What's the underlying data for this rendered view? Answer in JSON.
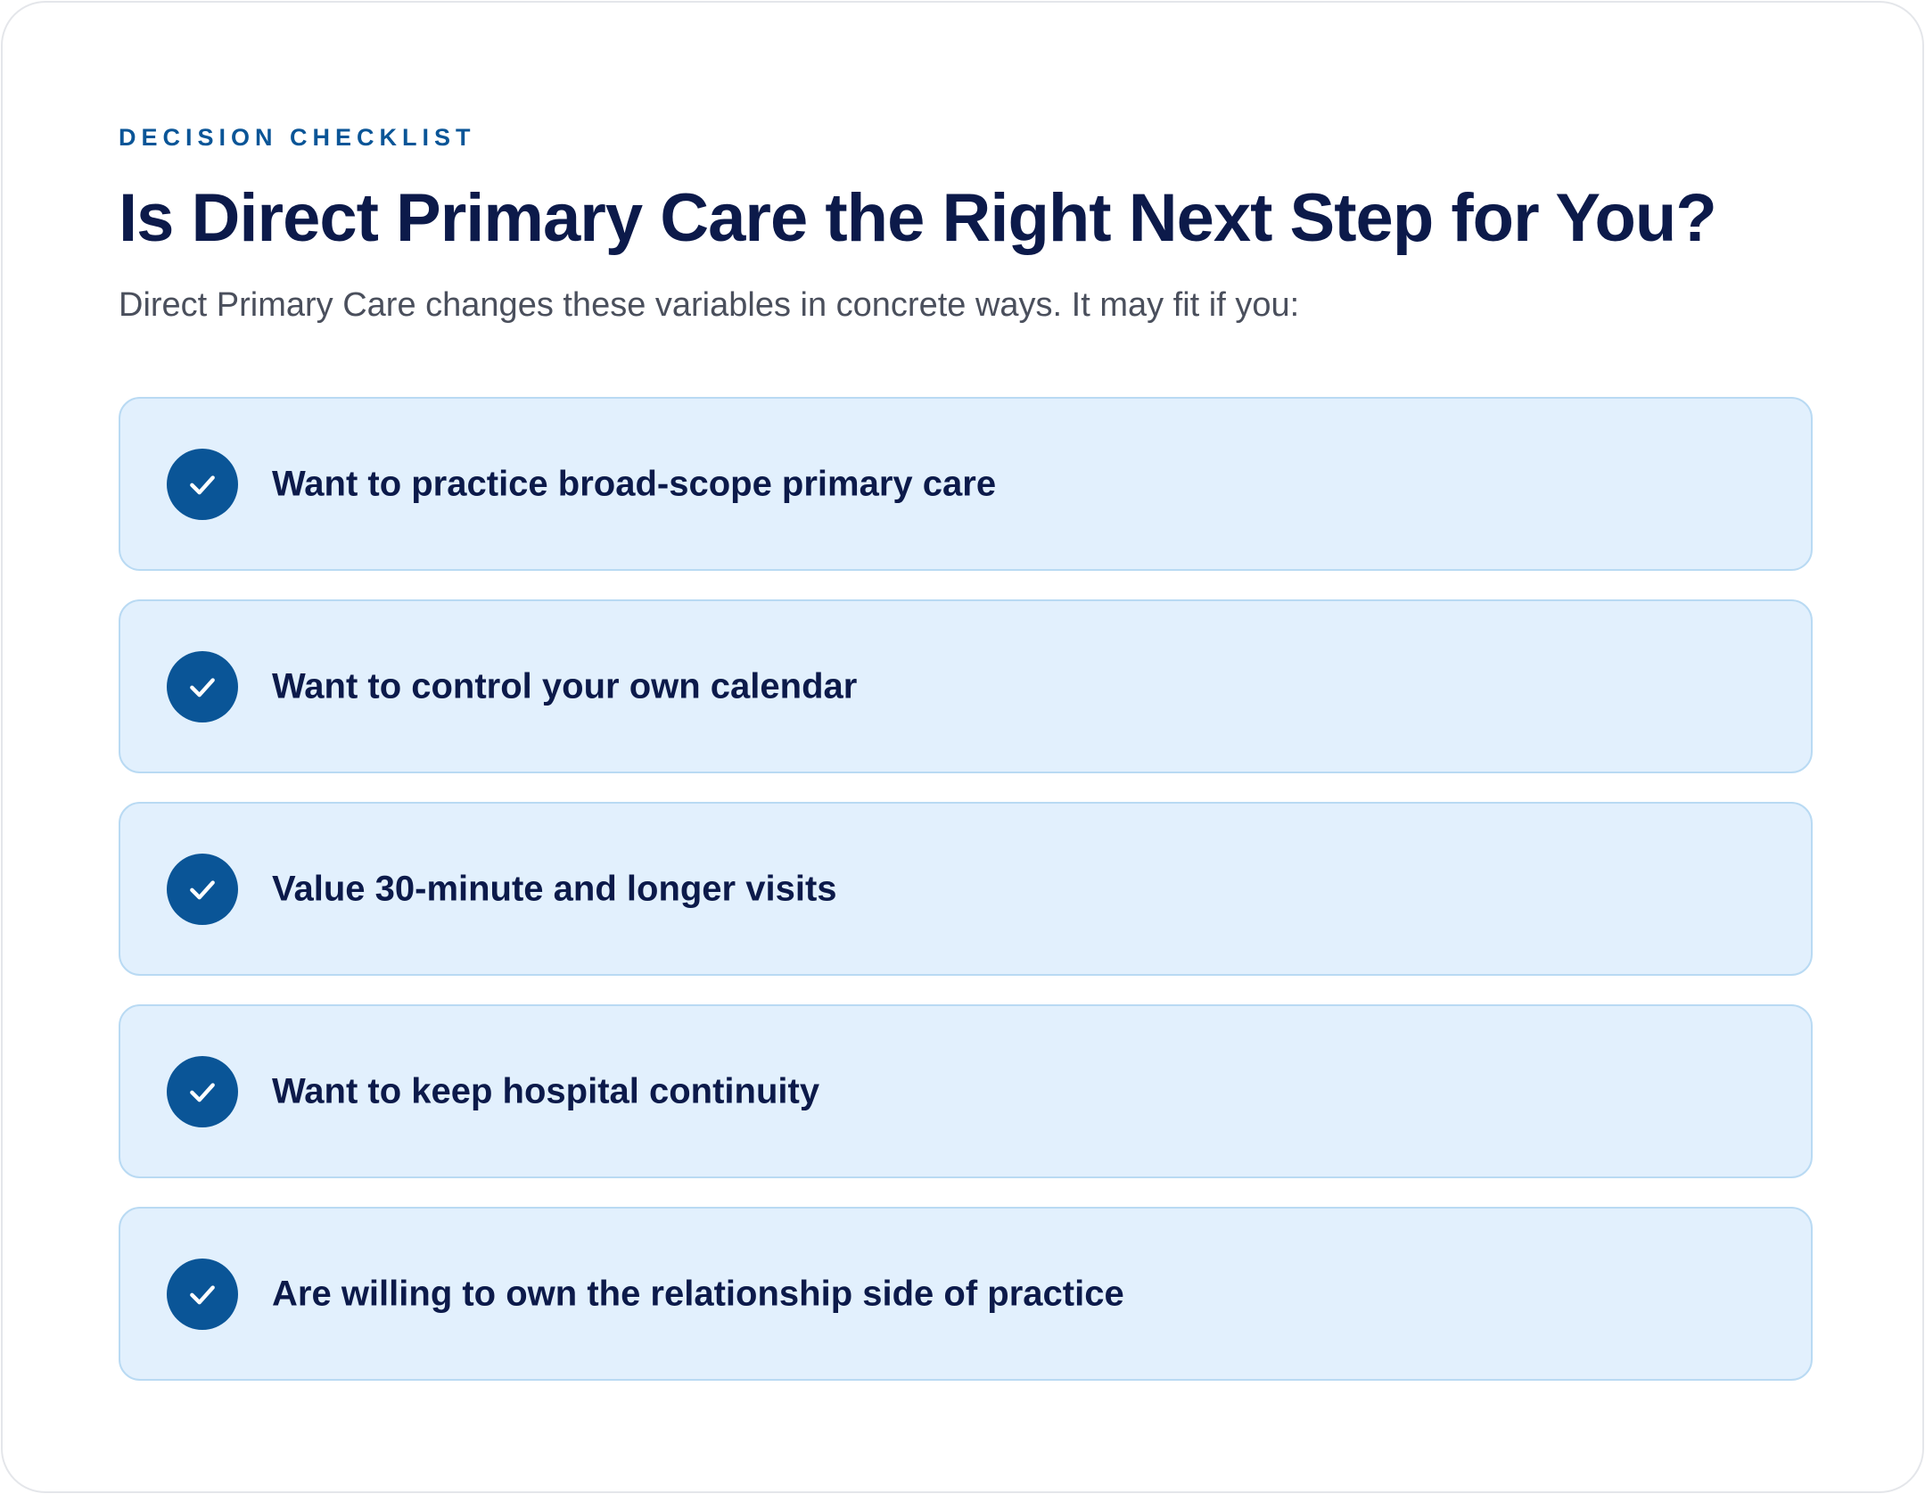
{
  "header": {
    "eyebrow": "DECISION CHECKLIST",
    "title": "Is Direct Primary Care the Right Next Step for You?",
    "subtitle": "Direct Primary Care changes these variables in concrete ways. It may fit if you:"
  },
  "checklist": {
    "icon": "check-circle-icon",
    "items": [
      {
        "label": "Want to practice broad-scope primary care"
      },
      {
        "label": "Want to control your own calendar"
      },
      {
        "label": "Value 30-minute and longer visits"
      },
      {
        "label": "Want to keep hospital continuity"
      },
      {
        "label": "Are willing to own the relationship side of practice"
      }
    ]
  },
  "colors": {
    "accent": "#0a5597",
    "title": "#0c1a4a",
    "subtitle": "#4a4f5c",
    "item_background": "#e2f0fd",
    "item_border": "#b9daf3"
  }
}
